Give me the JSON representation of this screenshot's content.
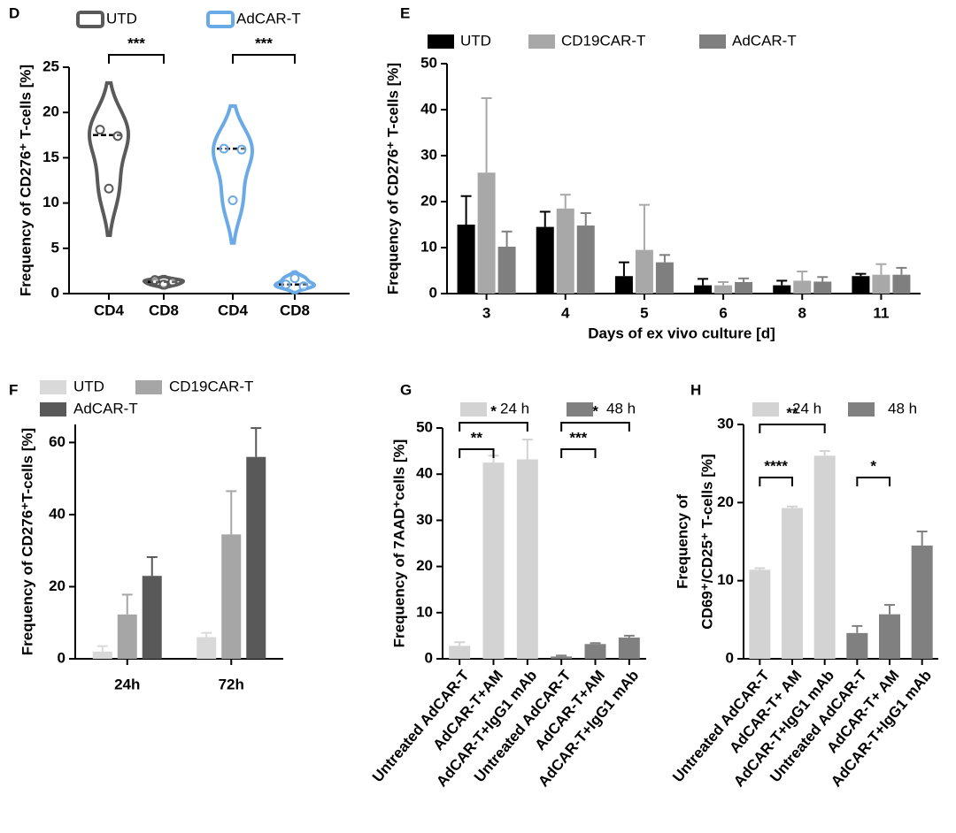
{
  "chart_data": [
    {
      "type": "violin",
      "panel": "D",
      "ylabel": "Frequency of CD276⁺ T-cells [%]",
      "categories": [
        "CD4",
        "CD8",
        "CD4",
        "CD8"
      ],
      "series": [
        {
          "name": "UTD",
          "color": "#5a5a5a",
          "points": [
            [
              18.1,
              17.4,
              11.6
            ],
            [
              1.5,
              1.3,
              1.0
            ],
            null,
            null
          ],
          "medians": [
            17.5,
            1.3,
            null,
            null
          ]
        },
        {
          "name": "AdCAR-T",
          "color": "#6aaae6",
          "points": [
            null,
            null,
            [
              16.0,
              15.9,
              10.3
            ],
            [
              1.0,
              0.8,
              1.7
            ]
          ],
          "medians": [
            null,
            null,
            16.0,
            1.0
          ]
        }
      ],
      "ylim": [
        0,
        25
      ],
      "yticks": [
        0,
        5,
        10,
        15,
        20,
        25
      ],
      "significance": [
        "***",
        "***"
      ]
    },
    {
      "type": "bar",
      "panel": "E",
      "ylabel": "Frequency of CD276⁺ T-cells [%]",
      "xlabel": "Days of ex vivo culture [d]",
      "categories": [
        "3",
        "4",
        "5",
        "6",
        "8",
        "11"
      ],
      "series": [
        {
          "name": "UTD",
          "color": "#000000",
          "values": [
            15,
            14.5,
            3.8,
            1.8,
            1.8,
            3.8
          ],
          "errors": [
            6.2,
            3.3,
            3,
            1.4,
            1,
            0.5
          ]
        },
        {
          "name": "CD19CAR-T",
          "color": "#a8a8a8",
          "values": [
            26.3,
            18.5,
            9.5,
            1.8,
            2.8,
            4.1
          ],
          "errors": [
            16.2,
            3,
            9.8,
            0.7,
            2,
            2.3
          ]
        },
        {
          "name": "AdCAR-T",
          "color": "#7f7f7f",
          "values": [
            10.2,
            14.8,
            6.8,
            2.5,
            2.6,
            4.1
          ],
          "errors": [
            3.3,
            2.7,
            1.6,
            0.8,
            1,
            1.5
          ]
        }
      ],
      "ylim": [
        0,
        50
      ],
      "yticks": [
        0,
        10,
        20,
        30,
        40,
        50
      ]
    },
    {
      "type": "bar",
      "panel": "F",
      "ylabel": "Frequency of CD276⁺T-cells [%]",
      "categories": [
        "24h",
        "72h"
      ],
      "series": [
        {
          "name": "UTD",
          "color": "#d9d9d9",
          "values": [
            2,
            6
          ],
          "errors": [
            1.5,
            1.2
          ]
        },
        {
          "name": "CD19CAR-T",
          "color": "#a6a6a6",
          "values": [
            12.3,
            34.5
          ],
          "errors": [
            5.5,
            12
          ]
        },
        {
          "name": "AdCAR-T",
          "color": "#595959",
          "values": [
            23,
            56
          ],
          "errors": [
            5.2,
            8
          ]
        }
      ],
      "ylim": [
        0,
        65
      ],
      "yticks": [
        0,
        20,
        40,
        60
      ]
    },
    {
      "type": "bar",
      "panel": "G",
      "ylabel": "Frequency of 7AAD⁺cells [%]",
      "categories": [
        "Untreated AdCAR-T",
        "AdCAR-T+AM",
        "AdCAR-T+IgG1 mAb",
        "Untreated AdCAR-T",
        "AdCAR-T+AM",
        "AdCAR-T+IgG1 mAb"
      ],
      "series": [
        {
          "name": "24 h",
          "color": "#d3d3d3",
          "values": [
            2.8,
            42.5,
            43.2,
            null,
            null,
            null
          ],
          "errors": [
            0.8,
            1.5,
            4.3,
            null,
            null,
            null
          ]
        },
        {
          "name": "48 h",
          "color": "#808080",
          "values": [
            null,
            null,
            null,
            0.5,
            3.2,
            4.6
          ],
          "errors": [
            null,
            null,
            null,
            0.2,
            0.2,
            0.4
          ]
        }
      ],
      "ylim": [
        0,
        50
      ],
      "yticks": [
        0,
        10,
        20,
        30,
        40,
        50
      ],
      "significance": [
        "**",
        "*",
        "***",
        "*"
      ]
    },
    {
      "type": "bar",
      "panel": "H",
      "ylabel": [
        "Frequency of",
        "CD69⁺/CD25⁺ T-cells [%]"
      ],
      "categories": [
        "Untreated AdCAR-T",
        "AdCAR-T+ AM",
        "AdCAR-T+IgG1 mAb",
        "Untreated AdCAR-T",
        "AdCAR-T+ AM",
        "AdCAR-T+IgG1 mAb"
      ],
      "series": [
        {
          "name": "24 h",
          "color": "#d3d3d3",
          "values": [
            11.4,
            19.3,
            26,
            null,
            null,
            null
          ],
          "errors": [
            0.2,
            0.2,
            0.6,
            null,
            null,
            null
          ]
        },
        {
          "name": "48 h",
          "color": "#808080",
          "values": [
            null,
            null,
            null,
            3.3,
            5.7,
            14.5
          ],
          "errors": [
            null,
            null,
            null,
            0.9,
            1.2,
            1.8
          ]
        }
      ],
      "ylim": [
        0,
        30
      ],
      "yticks": [
        0,
        10,
        20,
        30
      ],
      "significance": [
        "****",
        "**",
        "*"
      ]
    }
  ]
}
